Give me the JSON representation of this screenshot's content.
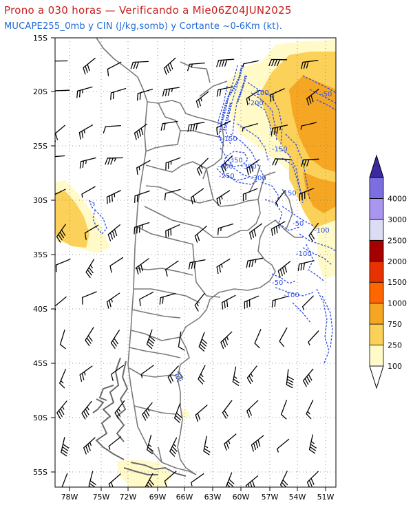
{
  "title_line1": "Prono a 030 horas — Verificando a Mie06Z04JUN2025",
  "title_line2": "MUCAPE255_0mb y CIN (J/kg,somb) y Cortante ~0-6Km (kt).",
  "lat_labels": [
    "15S",
    "20S",
    "25S",
    "30S",
    "35S",
    "40S",
    "45S",
    "50S",
    "55S"
  ],
  "lon_labels": [
    "78W",
    "75W",
    "72W",
    "69W",
    "66W",
    "63W",
    "60W",
    "57W",
    "54W",
    "51W"
  ],
  "cin_labels": [
    "-50",
    "-100",
    "-200",
    "-150",
    "-150",
    "-350",
    "-300",
    "-400",
    "-250",
    "-300",
    "-150",
    "-50",
    "-100",
    "-100",
    "-50",
    "-100"
  ],
  "colorbar": {
    "labels": [
      "100",
      "250",
      "750",
      "1000",
      "1500",
      "2000",
      "2500",
      "3000",
      "4000"
    ],
    "colors": [
      "#fffac8",
      "#fbd15a",
      "#f5a623",
      "#ff6600",
      "#e63200",
      "#a50000",
      "#dcdcf5",
      "#aa96f0",
      "#7b6ee0",
      "#5a4ac8",
      "#3c28a0"
    ]
  }
}
